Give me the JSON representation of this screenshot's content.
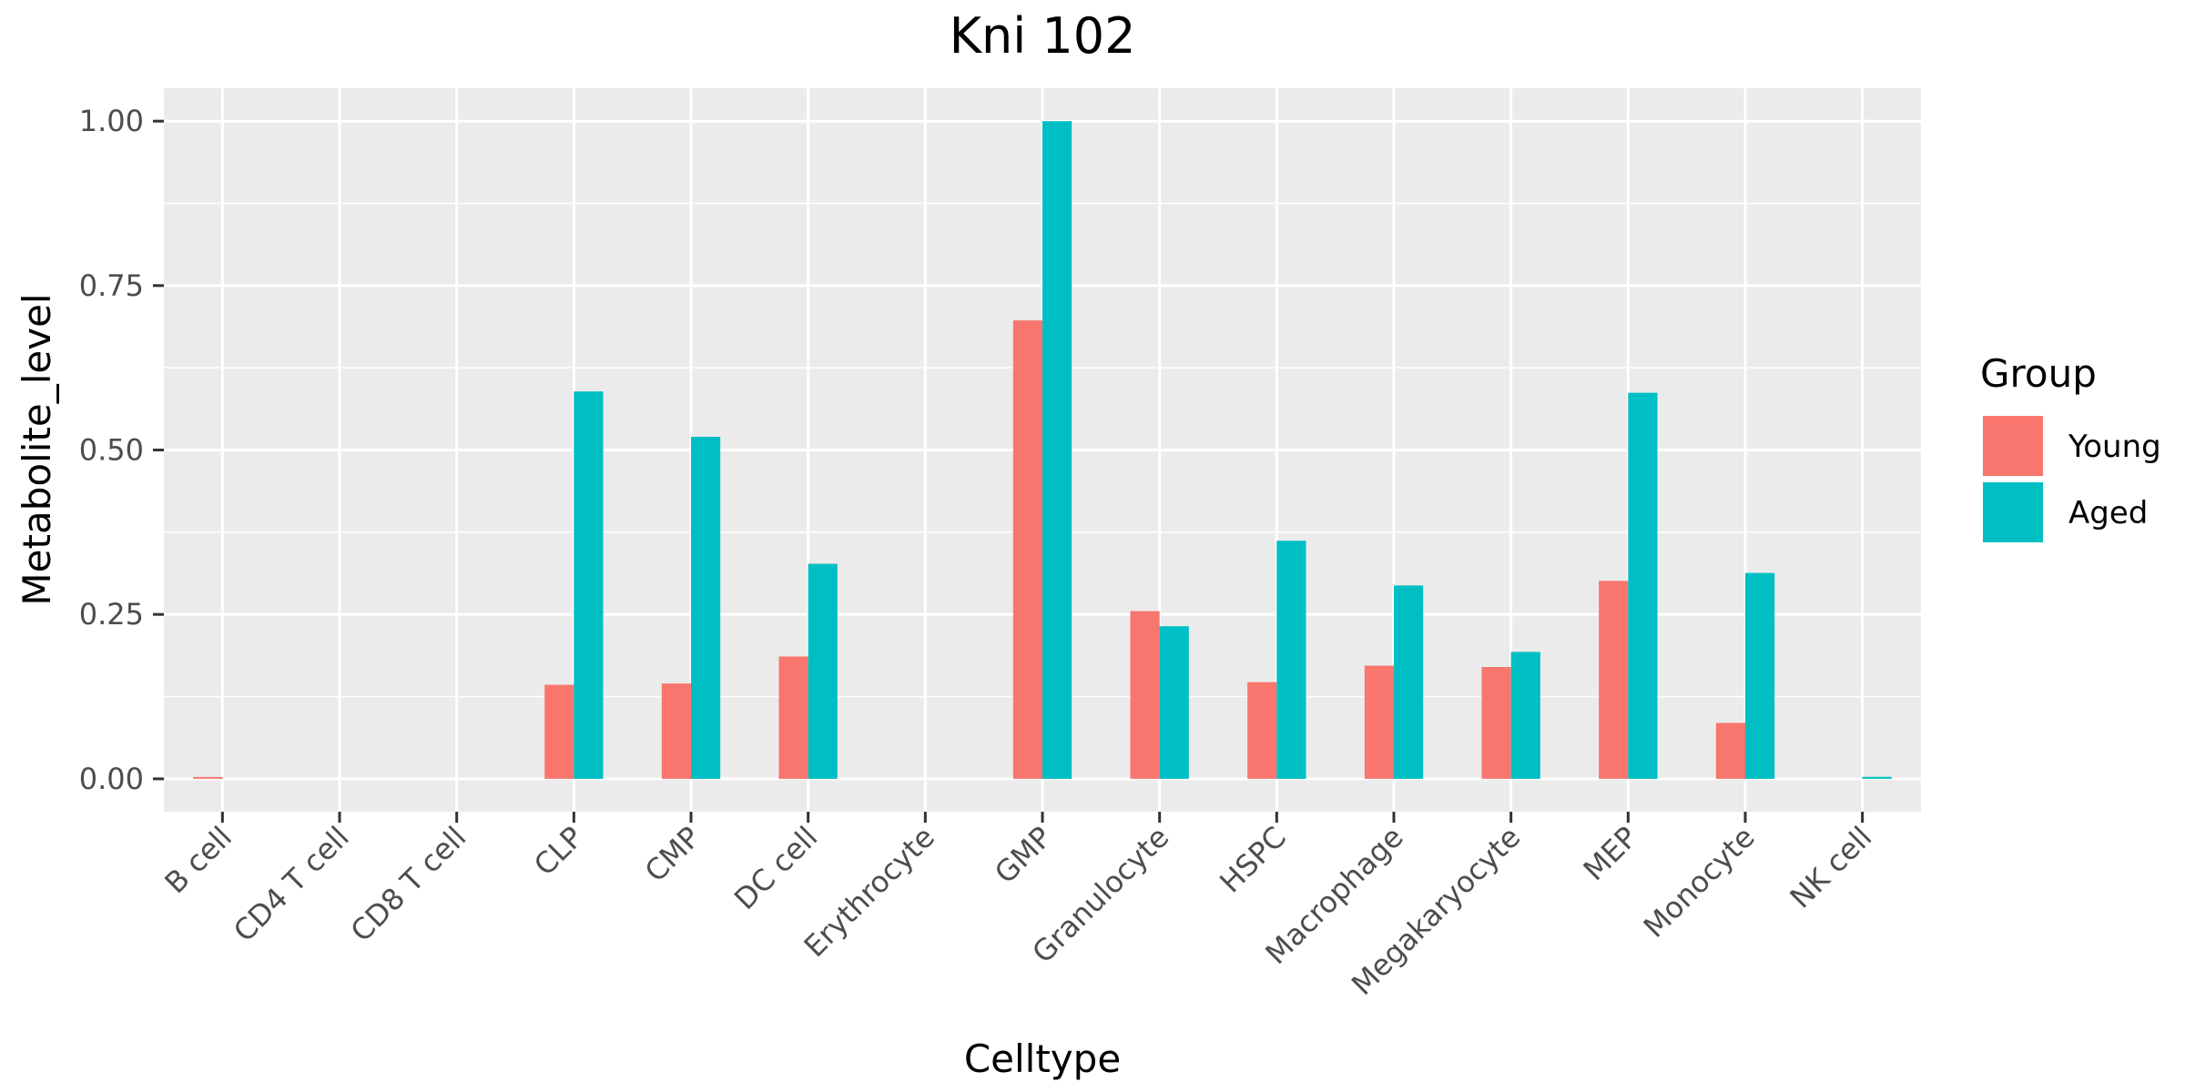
{
  "chart_data": {
    "type": "bar",
    "title": "Kni 102",
    "xlabel": "Celltype",
    "ylabel": "Metabolite_level",
    "categories": [
      "B cell",
      "CD4 T cell",
      "CD8 T cell",
      "CLP",
      "CMP",
      "DC cell",
      "Erythrocyte",
      "GMP",
      "Granulocyte",
      "HSPC",
      "Macrophage",
      "Megakaryocyte",
      "MEP",
      "Monocyte",
      "NK cell"
    ],
    "series": [
      {
        "name": "Young",
        "color": "#F8766D",
        "values": [
          0.002,
          0,
          0,
          0.143,
          0.145,
          0.186,
          0,
          0.697,
          0.255,
          0.147,
          0.172,
          0.17,
          0.301,
          0.085,
          0
        ]
      },
      {
        "name": "Aged",
        "color": "#00BFC4",
        "values": [
          0,
          0,
          0,
          0.589,
          0.52,
          0.327,
          0,
          1.0,
          0.232,
          0.362,
          0.294,
          0.193,
          0.587,
          0.313,
          0.003
        ]
      }
    ],
    "ylim": [
      -0.05,
      1.05
    ],
    "yticks": [
      0.0,
      0.25,
      0.5,
      0.75,
      1.0
    ],
    "ytick_labels": [
      "0.00",
      "0.25",
      "0.50",
      "0.75",
      "1.00"
    ],
    "legend": {
      "title": "Group",
      "placement": "right"
    },
    "grid": true,
    "panel_color": "#EBEBEB",
    "grid_color": "#FFFFFF"
  }
}
